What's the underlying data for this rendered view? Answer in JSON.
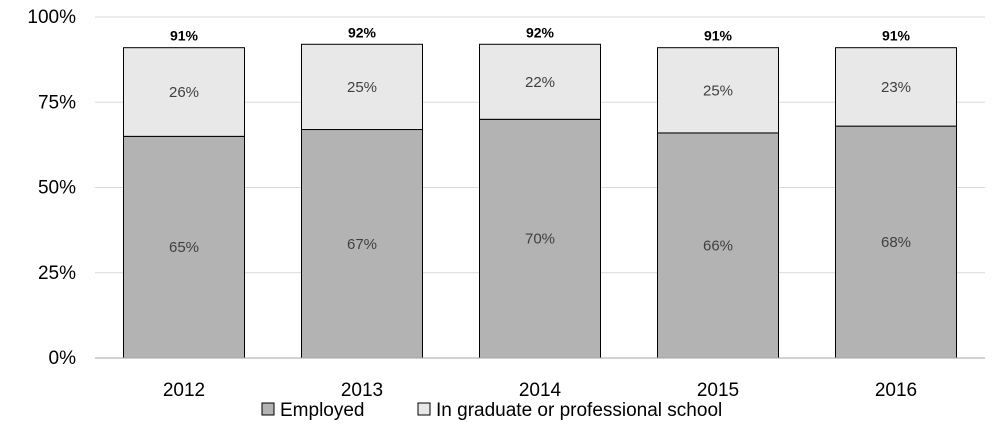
{
  "chart_data": {
    "type": "bar",
    "stacked": true,
    "title": "",
    "xlabel": "",
    "ylabel": "",
    "categories": [
      "2012",
      "2013",
      "2014",
      "2015",
      "2016"
    ],
    "series": [
      {
        "name": "Employed",
        "values": [
          65,
          67,
          70,
          66,
          68
        ],
        "labels": [
          "65%",
          "67%",
          "70%",
          "66%",
          "68%"
        ],
        "color": "#b3b3b3"
      },
      {
        "name": "In graduate or professional school",
        "values": [
          26,
          25,
          22,
          25,
          23
        ],
        "labels": [
          "26%",
          "25%",
          "22%",
          "25%",
          "23%"
        ],
        "color": "#e8e8e8"
      }
    ],
    "totals": [
      91,
      92,
      92,
      91,
      91
    ],
    "total_labels": [
      "91%",
      "92%",
      "92%",
      "91%",
      "91%"
    ],
    "ylim": [
      0,
      100
    ],
    "yticks": [
      0,
      25,
      50,
      75,
      100
    ],
    "ytick_labels": [
      "0%",
      "25%",
      "50%",
      "75%",
      "100%"
    ],
    "grid": true,
    "legend": "bottom"
  }
}
